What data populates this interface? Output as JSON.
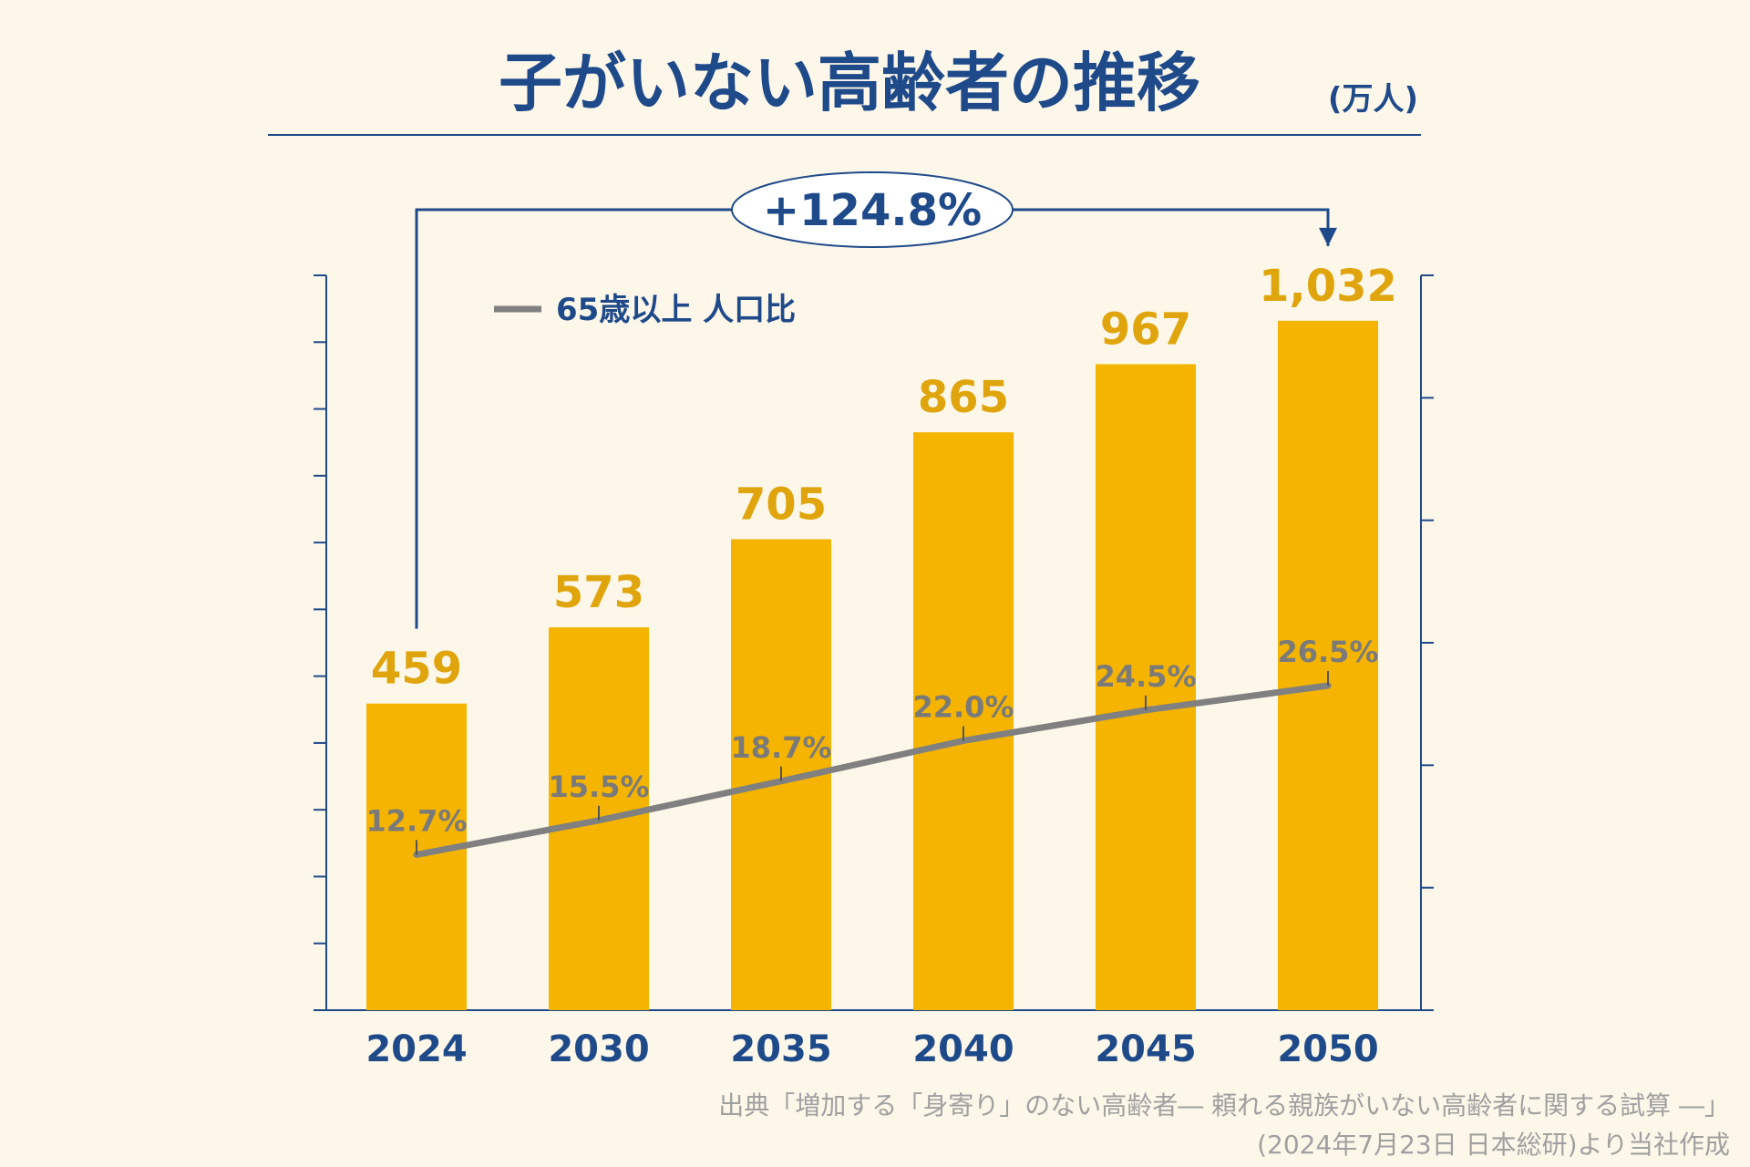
{
  "chart_data": {
    "type": "bar",
    "title": "子がいない高齢者の推移",
    "unit": "(万人)",
    "categories": [
      "2024",
      "2030",
      "2035",
      "2040",
      "2045",
      "2050"
    ],
    "series": [
      {
        "type": "bar",
        "values": [
          459,
          573,
          705,
          865,
          967,
          1032
        ],
        "labels": [
          "459",
          "573",
          "705",
          "865",
          "967",
          "1,032"
        ],
        "color": "#f5b400"
      },
      {
        "type": "line",
        "name": "65歳以上 人口比",
        "values": [
          12.7,
          15.5,
          18.7,
          22.0,
          24.5,
          26.5
        ],
        "labels": [
          "12.7%",
          "15.5%",
          "18.7%",
          "22.0%",
          "24.5%",
          "26.5%"
        ],
        "color": "#808080",
        "axis": "right"
      }
    ],
    "ylim": [
      0,
      1100
    ],
    "y2lim": [
      0,
      60
    ],
    "annotation": "+124.8%",
    "axis_color": "#1f4a8a",
    "grid": false,
    "legend_position": "top-left"
  },
  "source": {
    "line1": "出典「増加する「身寄り」のない高齢者― 頼れる親族がいない高齢者に関する試算 ―」",
    "line2": "(2024年7月23日 日本総研)より当社作成"
  }
}
